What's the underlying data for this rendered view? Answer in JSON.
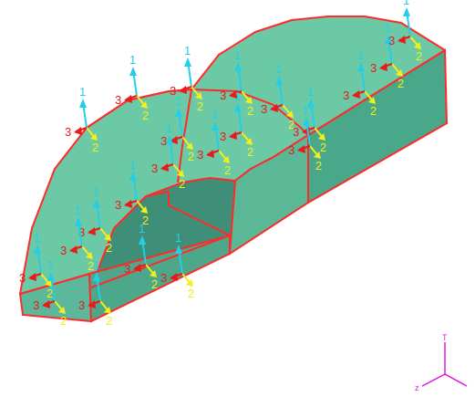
{
  "colors": {
    "background": "#ffffff",
    "surface_fill": "#6cc9a6",
    "surface_fill_inner": "#3f8f78",
    "edge": "#ff2a2a",
    "axis1": "#22cfe8",
    "axis2": "#f2ef1a",
    "axis3": "#e81a1a",
    "triad": "#d91ad9"
  },
  "markers": [
    {
      "labels": [
        "1",
        "2",
        "3"
      ],
      "id": "m01"
    },
    {
      "labels": [
        "1",
        "2",
        "3"
      ],
      "id": "m02"
    },
    {
      "labels": [
        "1",
        "2",
        "3"
      ],
      "id": "m03"
    },
    {
      "labels": [
        "1",
        "2",
        "3"
      ],
      "id": "m04"
    },
    {
      "labels": [
        "1",
        "2",
        "3"
      ],
      "id": "m05"
    },
    {
      "labels": [
        "1",
        "2",
        "3"
      ],
      "id": "m06"
    },
    {
      "labels": [
        "1",
        "2",
        "3"
      ],
      "id": "m07"
    },
    {
      "labels": [
        "1",
        "2",
        "3"
      ],
      "id": "m08"
    },
    {
      "labels": [
        "1",
        "2",
        "3"
      ],
      "id": "m09"
    },
    {
      "labels": [
        "1",
        "2",
        "3"
      ],
      "id": "m10"
    },
    {
      "labels": [
        "1",
        "2",
        "3"
      ],
      "id": "m11"
    },
    {
      "labels": [
        "1",
        "2",
        "3"
      ],
      "id": "m12"
    },
    {
      "labels": [
        "1",
        "2",
        "3"
      ],
      "id": "m13"
    },
    {
      "labels": [
        "1",
        "2",
        "3"
      ],
      "id": "m14"
    },
    {
      "labels": [
        "1",
        "2",
        "3"
      ],
      "id": "m15"
    },
    {
      "labels": [
        "1",
        "2",
        "3"
      ],
      "id": "m16"
    },
    {
      "labels": [
        "1",
        "2",
        "3"
      ],
      "id": "m17"
    },
    {
      "labels": [
        "1",
        "2",
        "3"
      ],
      "id": "m18"
    },
    {
      "labels": [
        "1",
        "2",
        "3"
      ],
      "id": "m19"
    },
    {
      "labels": [
        "1",
        "2",
        "3"
      ],
      "id": "m20"
    },
    {
      "labels": [
        "1",
        "2",
        "3"
      ],
      "id": "m21"
    },
    {
      "labels": [
        "1",
        "2",
        "3"
      ],
      "id": "m22"
    }
  ],
  "triad": {
    "top_label": "T",
    "left_label": "z"
  }
}
